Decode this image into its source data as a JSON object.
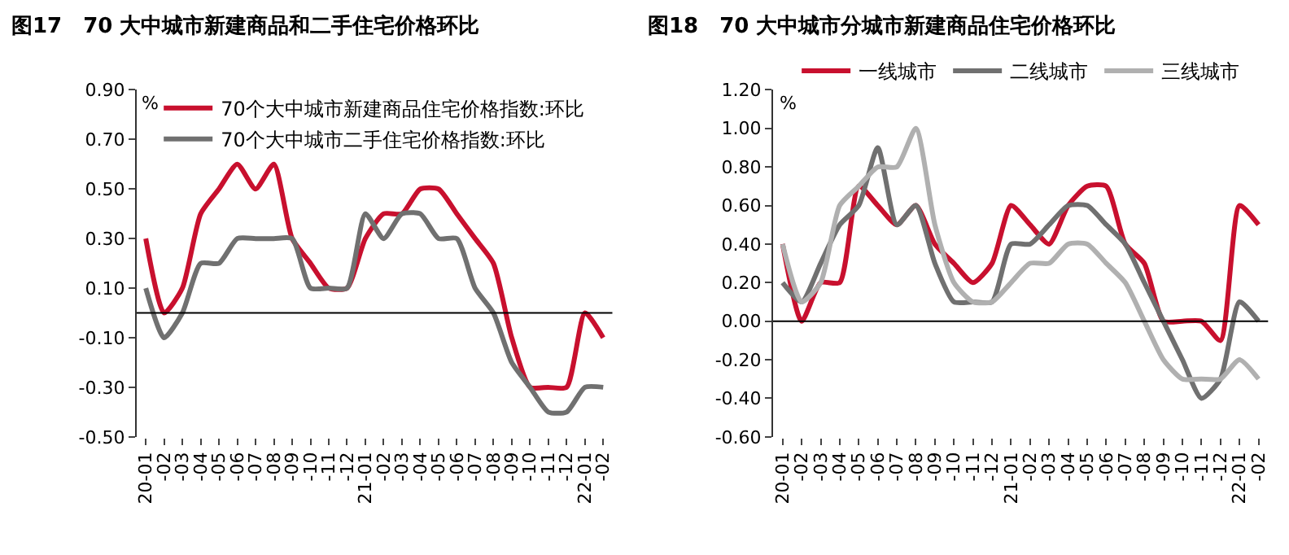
{
  "chart_data": [
    {
      "type": "line",
      "title": "图17　70 大中城市新建商品和二手住宅价格环比",
      "ylabel": "%",
      "categories": [
        "20-01",
        "-02",
        "-03",
        "-04",
        "-05",
        "-06",
        "-07",
        "-08",
        "-09",
        "-10",
        "-11",
        "-12",
        "21-01",
        "-02",
        "-03",
        "-04",
        "-05",
        "-06",
        "-07",
        "-08",
        "-09",
        "-10",
        "-11",
        "-12",
        "22-01",
        "-02"
      ],
      "series": [
        {
          "name": "70个大中城市新建商品住宅价格指数:环比",
          "color": "#c8102e",
          "values": [
            0.3,
            0.0,
            0.1,
            0.4,
            0.5,
            0.6,
            0.5,
            0.6,
            0.3,
            0.2,
            0.1,
            0.1,
            0.3,
            0.4,
            0.4,
            0.5,
            0.5,
            0.4,
            0.3,
            0.2,
            -0.1,
            -0.3,
            -0.3,
            -0.3,
            0.0,
            -0.1
          ]
        },
        {
          "name": "70个大中城市二手住宅价格指数:环比",
          "color": "#707070",
          "values": [
            0.1,
            -0.1,
            0.0,
            0.2,
            0.2,
            0.3,
            0.3,
            0.3,
            0.3,
            0.1,
            0.1,
            0.1,
            0.4,
            0.3,
            0.4,
            0.4,
            0.3,
            0.3,
            0.1,
            0.0,
            -0.2,
            -0.3,
            -0.4,
            -0.4,
            -0.3,
            -0.3
          ]
        }
      ],
      "ylim": [
        -0.5,
        0.9
      ],
      "yticks": [
        {
          "value": -0.5,
          "label": "-0.50"
        },
        {
          "value": -0.3,
          "label": "-0.30"
        },
        {
          "value": -0.1,
          "label": "-0.10"
        },
        {
          "value": 0.1,
          "label": "0.10"
        },
        {
          "value": 0.3,
          "label": "0.30"
        },
        {
          "value": 0.5,
          "label": "0.50"
        },
        {
          "value": 0.7,
          "label": "0.70"
        },
        {
          "value": 0.9,
          "label": "0.90"
        }
      ],
      "ref_lines": [
        {
          "axis": "y",
          "value": 0,
          "color": "#000000"
        }
      ],
      "legend": "top",
      "marker": "none",
      "line_style": "solid"
    },
    {
      "type": "line",
      "title": "图18　70 大中城市分城市新建商品住宅价格环比",
      "ylabel": "%",
      "categories": [
        "20-01",
        "-02",
        "-03",
        "-04",
        "-05",
        "-06",
        "-07",
        "-08",
        "-09",
        "-10",
        "-11",
        "-12",
        "21-01",
        "-02",
        "-03",
        "-04",
        "-05",
        "-06",
        "-07",
        "-08",
        "-09",
        "-10",
        "-11",
        "-12",
        "22-01",
        "-02"
      ],
      "series": [
        {
          "name": "一线城市",
          "color": "#c8102e",
          "values": [
            0.4,
            0.0,
            0.2,
            0.2,
            0.7,
            0.6,
            0.5,
            0.6,
            0.4,
            0.3,
            0.2,
            0.3,
            0.6,
            0.5,
            0.4,
            0.6,
            0.7,
            0.7,
            0.4,
            0.3,
            0.0,
            0.0,
            0.0,
            -0.1,
            0.6,
            0.5
          ]
        },
        {
          "name": "二线城市",
          "color": "#707070",
          "values": [
            0.2,
            0.1,
            0.3,
            0.5,
            0.6,
            0.9,
            0.5,
            0.6,
            0.3,
            0.1,
            0.1,
            0.1,
            0.4,
            0.4,
            0.5,
            0.6,
            0.6,
            0.5,
            0.4,
            0.2,
            0.0,
            -0.2,
            -0.4,
            -0.3,
            0.1,
            0.0
          ]
        },
        {
          "name": "三线城市",
          "color": "#b0b0b0",
          "values": [
            0.4,
            0.1,
            0.2,
            0.6,
            0.7,
            0.8,
            0.8,
            1.0,
            0.5,
            0.2,
            0.1,
            0.1,
            0.2,
            0.3,
            0.3,
            0.4,
            0.4,
            0.3,
            0.2,
            0.0,
            -0.2,
            -0.3,
            -0.3,
            -0.3,
            -0.2,
            -0.3
          ]
        }
      ],
      "ylim": [
        -0.6,
        1.2
      ],
      "yticks": [
        {
          "value": -0.6,
          "label": "-0.60"
        },
        {
          "value": -0.4,
          "label": "-0.40"
        },
        {
          "value": -0.2,
          "label": "-0.20"
        },
        {
          "value": 0,
          "label": "0.00"
        },
        {
          "value": 0.2,
          "label": "0.20"
        },
        {
          "value": 0.4,
          "label": "0.40"
        },
        {
          "value": 0.6,
          "label": "0.60"
        },
        {
          "value": 0.8,
          "label": "0.80"
        },
        {
          "value": 1.0,
          "label": "1.00"
        },
        {
          "value": 1.2,
          "label": "1.20"
        }
      ],
      "ref_lines": [
        {
          "axis": "y",
          "value": 0,
          "color": "#000000"
        }
      ],
      "legend": "top",
      "marker": "none",
      "line_style": "solid"
    }
  ]
}
